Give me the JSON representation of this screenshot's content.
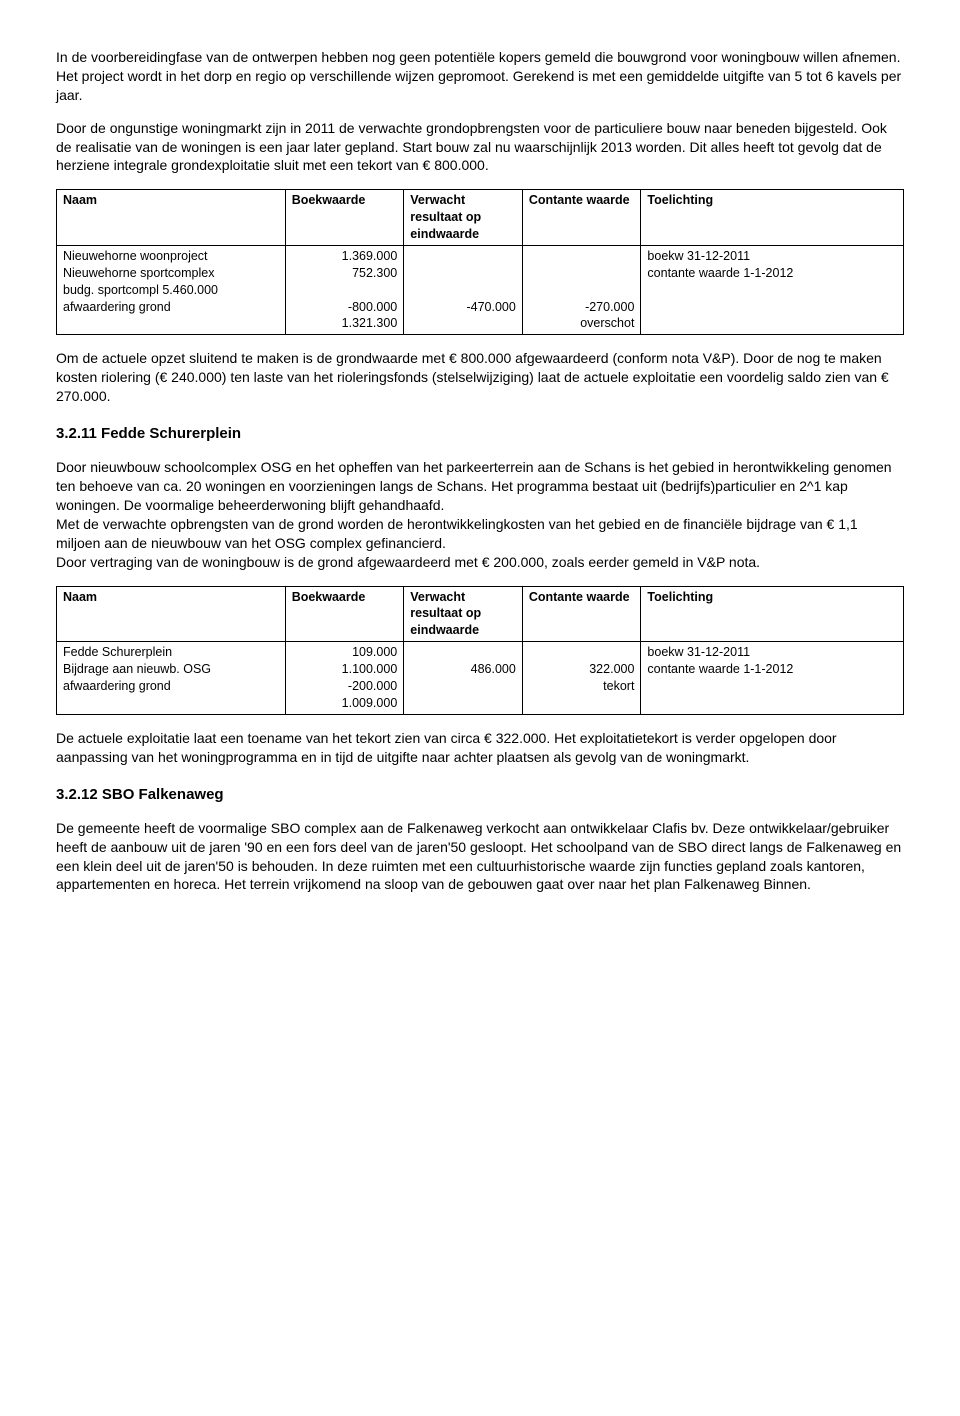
{
  "paragraphs": {
    "p1": "In de voorbereidingfase van de ontwerpen hebben nog geen potentiële kopers gemeld die bouwgrond voor woningbouw willen afnemen. Het project wordt in het dorp en regio op verschillende wijzen gepromoot. Gerekend is met een gemiddelde uitgifte van 5 tot 6 kavels per jaar.",
    "p2": "Door de ongunstige woningmarkt zijn in 2011 de verwachte grondopbrengsten voor de particuliere bouw naar beneden bijgesteld. Ook de realisatie van de woningen is een jaar later gepland. Start bouw zal nu waarschijnlijk 2013 worden. Dit alles heeft tot gevolg dat de herziene integrale grondexploitatie sluit met een tekort van € 800.000.",
    "p3": "Om de actuele opzet sluitend te maken is de grondwaarde met € 800.000 afgewaardeerd (conform nota V&P). Door de nog te maken kosten riolering (€ 240.000) ten laste van het rioleringsfonds (stelselwijziging) laat de actuele exploitatie een voordelig saldo zien van € 270.000.",
    "h1": "3.2.11 Fedde Schurerplein",
    "p4": "Door nieuwbouw schoolcomplex OSG en het opheffen van het parkeerterrein aan de Schans is het gebied in herontwikkeling genomen ten behoeve van ca. 20 woningen en voorzieningen langs de Schans. Het programma bestaat uit (bedrijfs)particulier en 2^1 kap woningen. De voormalige beheerderwoning blijft gehandhaafd.",
    "p5": "Met de verwachte opbrengsten van de grond worden de herontwikkelingkosten van het gebied en de financiële bijdrage van € 1,1 miljoen aan de nieuwbouw van het OSG complex gefinancierd.",
    "p6": "Door vertraging van de woningbouw is de grond afgewaardeerd met € 200.000, zoals eerder gemeld in V&P nota.",
    "p7": "De actuele exploitatie laat een toename van het tekort zien van circa € 322.000. Het exploitatietekort is verder opgelopen door aanpassing van het woningprogramma en in tijd de uitgifte naar achter plaatsen als gevolg van de woningmarkt.",
    "h2": "3.2.12 SBO Falkenaweg",
    "p8": "De gemeente heeft de voormalige SBO complex aan de Falkenaweg verkocht aan ontwikkelaar Clafis bv. Deze ontwikkelaar/gebruiker heeft de aanbouw uit de jaren '90 en een fors deel van de jaren'50 gesloopt. Het schoolpand van de SBO direct langs de Falkenaweg en een klein deel uit de jaren'50 is behouden. In deze ruimten met een cultuurhistorische waarde zijn functies gepland zoals kantoren, appartementen en horeca. Het terrein vrijkomend na sloop van de gebouwen gaat over naar het plan Falkenaweg Binnen."
  },
  "table_headers": {
    "naam": "Naam",
    "boekwaarde": "Boekwaarde",
    "verwacht": "Verwacht resultaat op eindwaarde",
    "contante": "Contante waarde",
    "toelichting": "Toelichting"
  },
  "table1": {
    "row_naam": "Nieuwehorne woonproject\nNieuwehorne sportcomplex\nbudg. sportcompl 5.460.000\nafwaardering grond",
    "row_boek": "1.369.000\n752.300\n\n-800.000\n1.321.300",
    "row_verw": "\n\n\n-470.000",
    "row_cont": "\n\n\n-270.000\noverschot",
    "row_toel": "boekw 31-12-2011\ncontante waarde 1-1-2012"
  },
  "table2": {
    "row_naam": "Fedde Schurerplein\nBijdrage aan nieuwb. OSG\nafwaardering grond",
    "row_boek": "109.000\n1.100.000\n-200.000\n1.009.000",
    "row_verw": "\n486.000",
    "row_cont": "\n322.000\ntekort",
    "row_toel": "boekw 31-12-2011\ncontante waarde 1-1-2012"
  }
}
